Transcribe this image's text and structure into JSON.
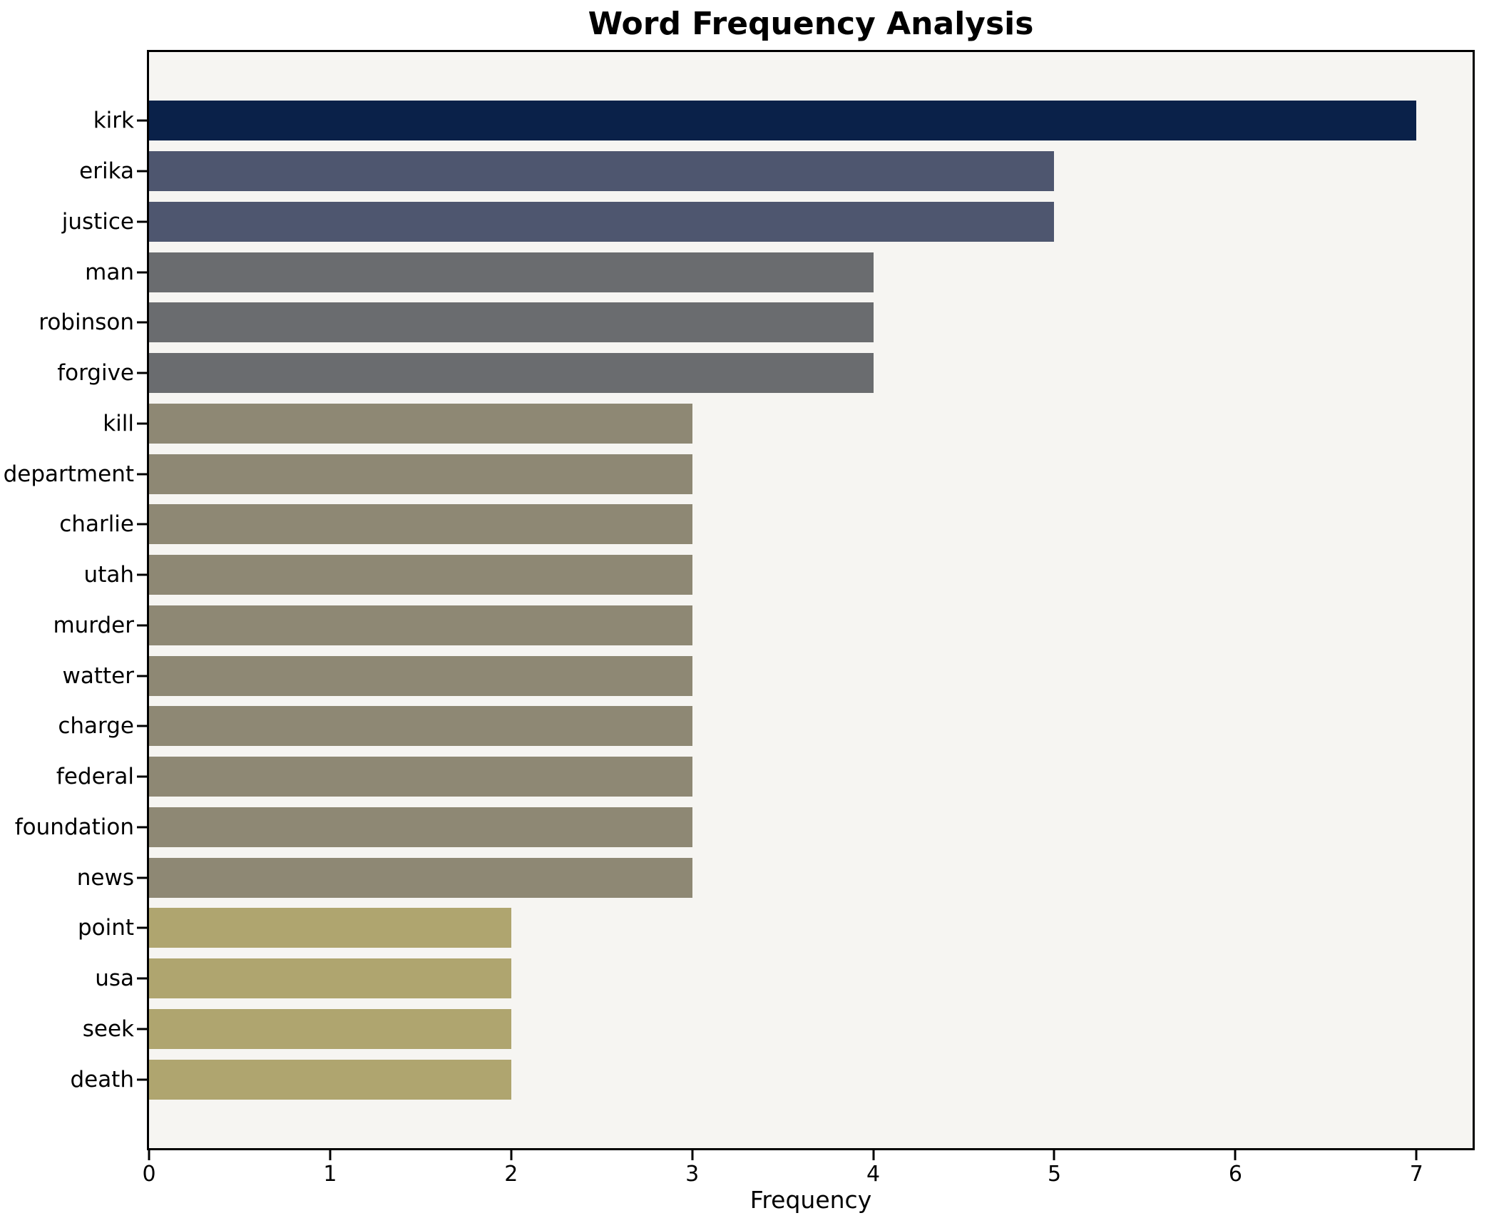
{
  "chart_data": {
    "type": "bar",
    "orientation": "horizontal",
    "title": "Word Frequency Analysis",
    "xlabel": "Frequency",
    "ylabel": "",
    "grid": false,
    "legend": "none",
    "xlim": [
      0,
      7.31
    ],
    "xticks": [
      0,
      1,
      2,
      3,
      4,
      5,
      6,
      7
    ],
    "plot_background": "#f6f5f2",
    "spine_color": "#000000",
    "categories": [
      "kirk",
      "erika",
      "justice",
      "man",
      "robinson",
      "forgive",
      "kill",
      "department",
      "charlie",
      "utah",
      "murder",
      "watter",
      "charge",
      "federal",
      "foundation",
      "news",
      "point",
      "usa",
      "seek",
      "death"
    ],
    "values": [
      7,
      5,
      5,
      4,
      4,
      4,
      3,
      3,
      3,
      3,
      3,
      3,
      3,
      3,
      3,
      3,
      2,
      2,
      2,
      2
    ],
    "bar_colors": [
      "#0a2149",
      "#4e566f",
      "#4e566f",
      "#6a6c6f",
      "#6a6c6f",
      "#6a6c6f",
      "#8e8874",
      "#8e8874",
      "#8e8874",
      "#8e8874",
      "#8e8874",
      "#8e8874",
      "#8e8874",
      "#8e8874",
      "#8e8874",
      "#8e8874",
      "#afa56f",
      "#afa56f",
      "#afa56f",
      "#afa56f"
    ]
  }
}
